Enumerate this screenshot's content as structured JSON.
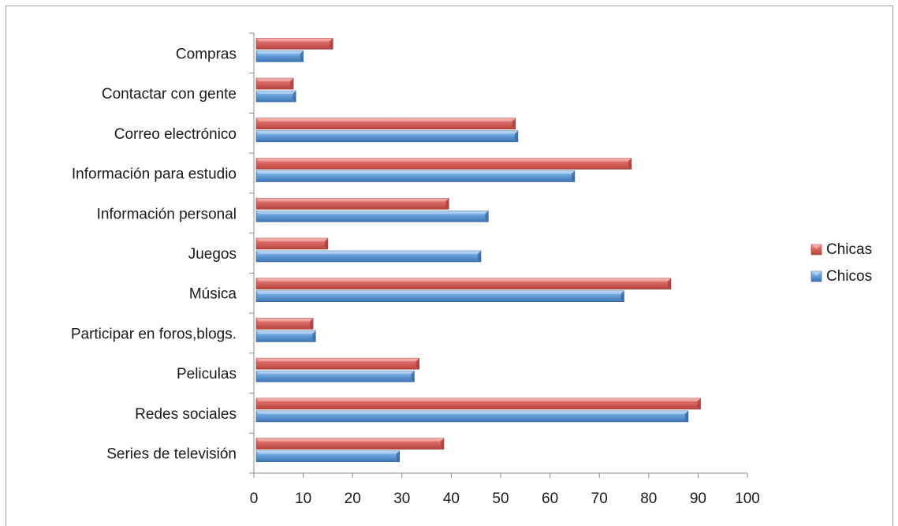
{
  "chart_data": {
    "type": "bar",
    "orientation": "horizontal",
    "categories": [
      "Compras",
      "Contactar con gente",
      "Correo electrónico",
      "Información para estudio",
      "Información personal",
      "Juegos",
      "Música",
      "Participar en foros,blogs.",
      "Peliculas",
      "Redes sociales",
      "Series de televisión"
    ],
    "series": [
      {
        "name": "Chicas",
        "color": "#c0504d",
        "values": [
          16,
          8,
          53,
          76.5,
          39.5,
          15,
          84.5,
          12,
          33.5,
          90.5,
          38.5
        ]
      },
      {
        "name": "Chicos",
        "color": "#4f81bd",
        "values": [
          10,
          8.5,
          53.5,
          65,
          47.5,
          46,
          75,
          12.5,
          32.5,
          88,
          29.5
        ]
      }
    ],
    "xlim": [
      0,
      100
    ],
    "x_ticks": [
      "0",
      "10",
      "20",
      "30",
      "40",
      "50",
      "60",
      "70",
      "80",
      "90",
      "100"
    ],
    "grid": false,
    "legend_position": "right"
  }
}
